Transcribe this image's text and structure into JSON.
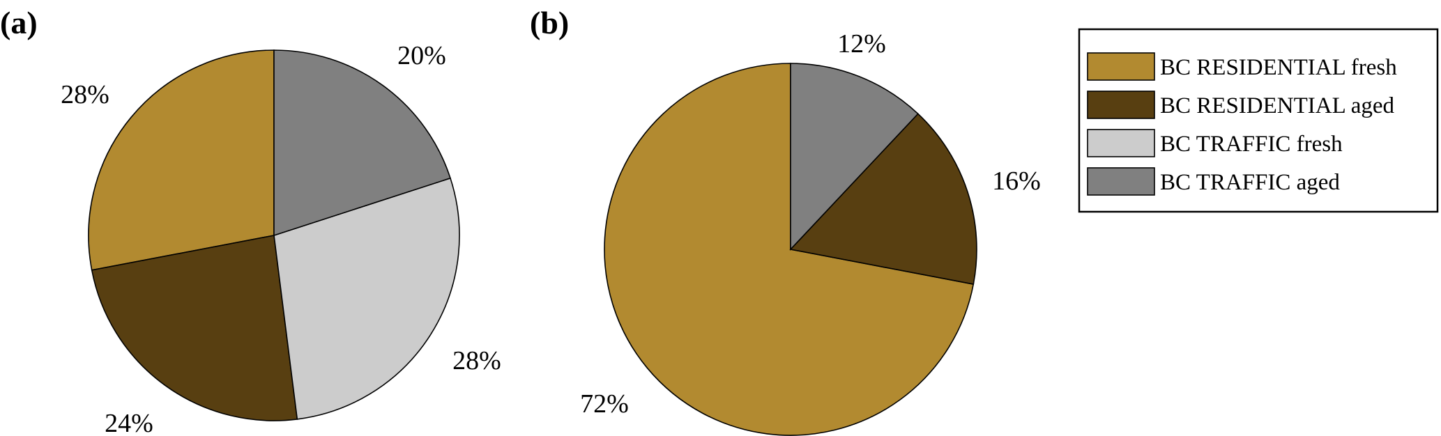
{
  "chart_data": [
    {
      "type": "pie",
      "panel_label": "(a)",
      "categories": [
        "BC RESIDENTIAL fresh",
        "BC RESIDENTIAL aged",
        "BC TRAFFIC fresh",
        "BC TRAFFIC aged"
      ],
      "values": [
        28,
        24,
        28,
        20
      ],
      "value_labels": [
        "28%",
        "24%",
        "28%",
        "20%"
      ],
      "colors": [
        "#b28a30",
        "#583f11",
        "#cccccc",
        "#808080"
      ],
      "start_angle_deg": 0,
      "direction": "counterclockwise"
    },
    {
      "type": "pie",
      "panel_label": "(b)",
      "categories": [
        "BC RESIDENTIAL fresh",
        "BC RESIDENTIAL aged",
        "BC TRAFFIC fresh",
        "BC TRAFFIC aged"
      ],
      "values": [
        72,
        16,
        0,
        12
      ],
      "value_labels": [
        "72%",
        "16%",
        "",
        "12%"
      ],
      "colors": [
        "#b28a30",
        "#583f11",
        "#cccccc",
        "#808080"
      ],
      "start_angle_deg": 0,
      "direction": "counterclockwise"
    }
  ],
  "legend": {
    "position": "right",
    "items": [
      {
        "label": "BC RESIDENTIAL fresh",
        "color": "#b28a30"
      },
      {
        "label": "BC RESIDENTIAL aged",
        "color": "#583f11"
      },
      {
        "label": "BC TRAFFIC fresh",
        "color": "#cccccc"
      },
      {
        "label": "BC TRAFFIC aged",
        "color": "#808080"
      }
    ]
  }
}
